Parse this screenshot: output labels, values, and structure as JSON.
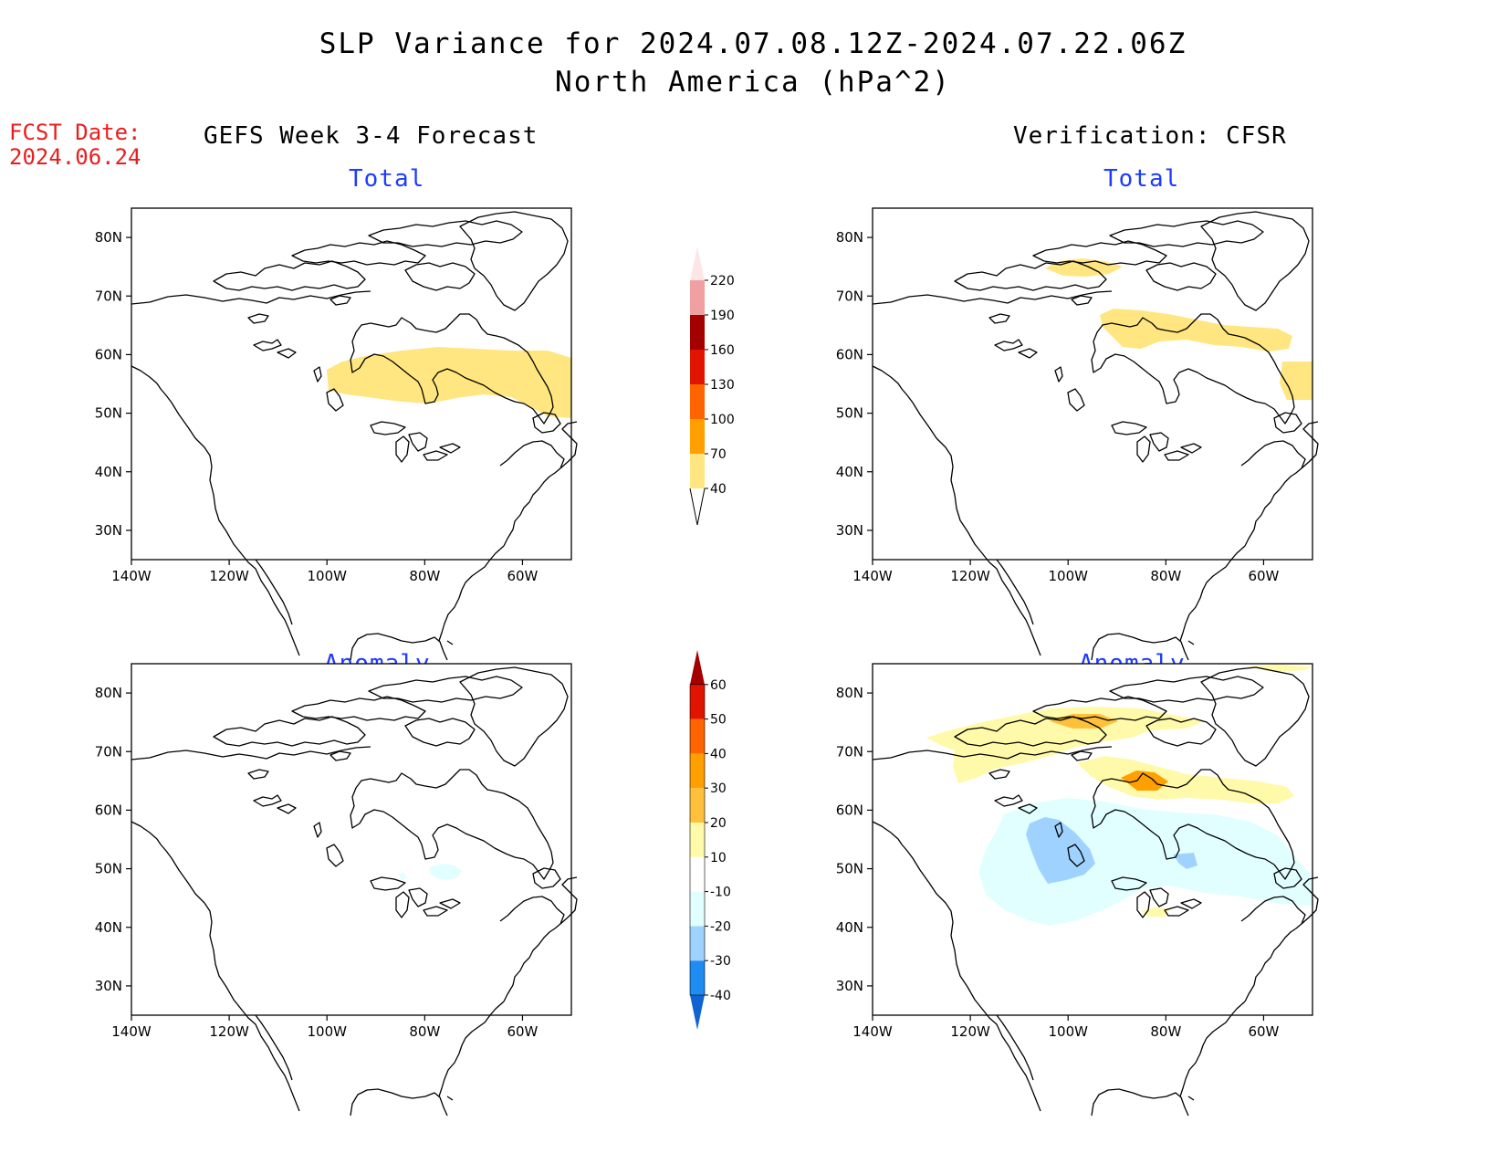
{
  "title": {
    "line1": "SLP Variance for 2024.07.08.12Z-2024.07.22.06Z",
    "line2": "North America (hPa^2)"
  },
  "fcst_date": {
    "label": "FCST Date:",
    "value": "2024.06.24"
  },
  "column_titles": {
    "left": "GEFS Week 3-4 Forecast",
    "right": "Verification: CFSR"
  },
  "panel_titles": {
    "total": "Total",
    "anomaly": "Anomaly"
  },
  "axes": {
    "lat_ticks": [
      "80N",
      "70N",
      "60N",
      "50N",
      "40N",
      "30N"
    ],
    "lon_ticks": [
      "140W",
      "120W",
      "100W",
      "80W",
      "60W"
    ],
    "lon_range": [
      -140,
      -50
    ],
    "lat_range": [
      25,
      85
    ]
  },
  "colorbars": {
    "total": {
      "levels": [
        "40",
        "70",
        "100",
        "130",
        "160",
        "190",
        "220"
      ],
      "colors": [
        "#ffe680",
        "#ffa000",
        "#ff6400",
        "#e11400",
        "#a50000",
        "#f0a0a0",
        "#ffe6e6"
      ]
    },
    "anomaly": {
      "levels": [
        "-40",
        "-30",
        "-20",
        "-10",
        "10",
        "20",
        "30",
        "40",
        "50",
        "60"
      ],
      "colors": [
        "#0f64d2",
        "#1e8cf0",
        "#a0d2ff",
        "#e1ffff",
        "#ffffff",
        "#fffaaa",
        "#ffc03c",
        "#ffa000",
        "#ff6400",
        "#e11400",
        "#a50000"
      ]
    }
  },
  "regions": {
    "gefs_total": [
      {
        "level": "40-70",
        "color": "#ffe680",
        "desc": "band across central/eastern Canada"
      }
    ],
    "cfsr_total": [
      {
        "level": "40-70",
        "color": "#ffe680",
        "desc": "Canadian archipelago, Hudson Strait band, Labrador"
      }
    ],
    "gefs_anomaly": [
      {
        "level": "-20 to -10",
        "color": "#e1ffff",
        "desc": "small area north of Great Lakes"
      }
    ],
    "cfsr_anomaly": [
      {
        "level": "10-20",
        "color": "#fffaaa",
        "desc": "Arctic archipelago and Hudson Strait"
      },
      {
        "level": "20-30",
        "color": "#ffc03c",
        "desc": "cores near Baffin/Hudson Strait"
      },
      {
        "level": "-20 to -10",
        "color": "#e1ffff",
        "desc": "broad area over southern Canada"
      },
      {
        "level": "-30 to -20",
        "color": "#a0d2ff",
        "desc": "core over Saskatchewan/Manitoba"
      }
    ]
  }
}
